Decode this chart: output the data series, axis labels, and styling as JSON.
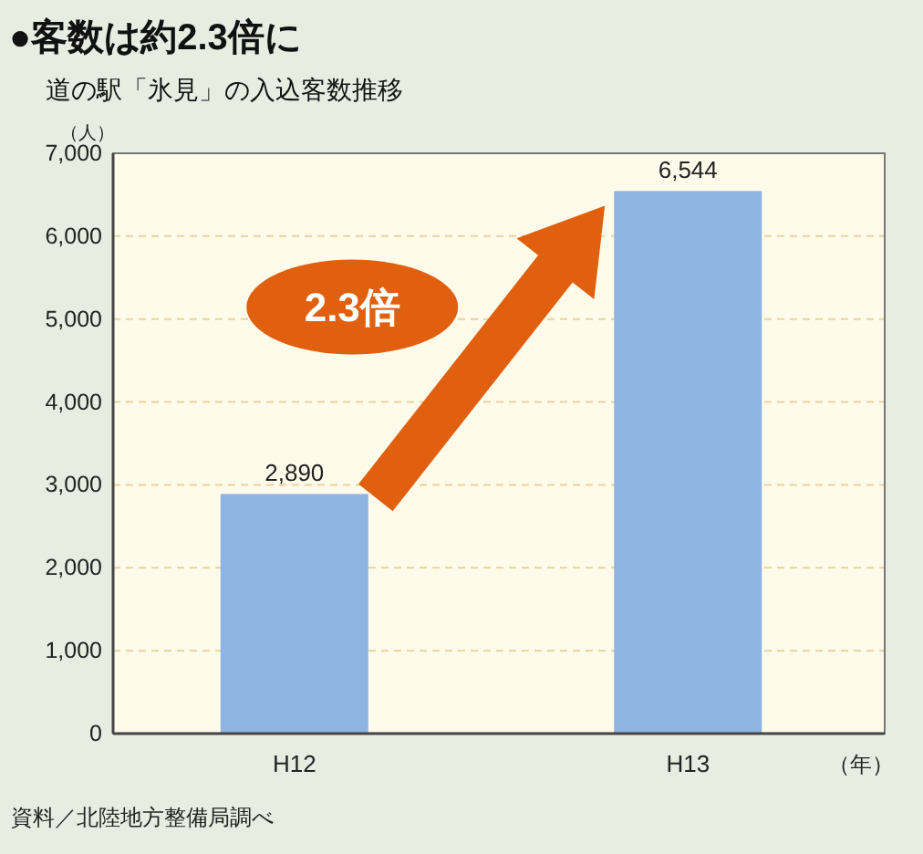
{
  "chart_data": {
    "type": "bar",
    "title": "●客数は約2.3倍に",
    "subtitle": "道の駅「氷見」の入込客数推移",
    "ylabel": "（人）",
    "xlabel": "（年）",
    "categories": [
      "H12",
      "H13"
    ],
    "values": [
      2890,
      6544
    ],
    "value_labels": [
      "2,890",
      "6,544"
    ],
    "color": "#8db4e2",
    "ylim": [
      0,
      7000
    ],
    "yticks": [
      0,
      {
        "value": 1000,
        "label": "1,000"
      },
      {
        "value": 2000,
        "label": "2,000"
      },
      {
        "value": 3000,
        "label": "3,000"
      },
      {
        "value": 4000,
        "label": "4,000"
      },
      {
        "value": 5000,
        "label": "5,000"
      },
      {
        "value": 6000,
        "label": "6,000"
      },
      {
        "value": 7000,
        "label": "7,000"
      }
    ],
    "grid": "y",
    "annotations": [
      "2.3倍",
      "資料／北陸地方整備局調べ"
    ]
  }
}
